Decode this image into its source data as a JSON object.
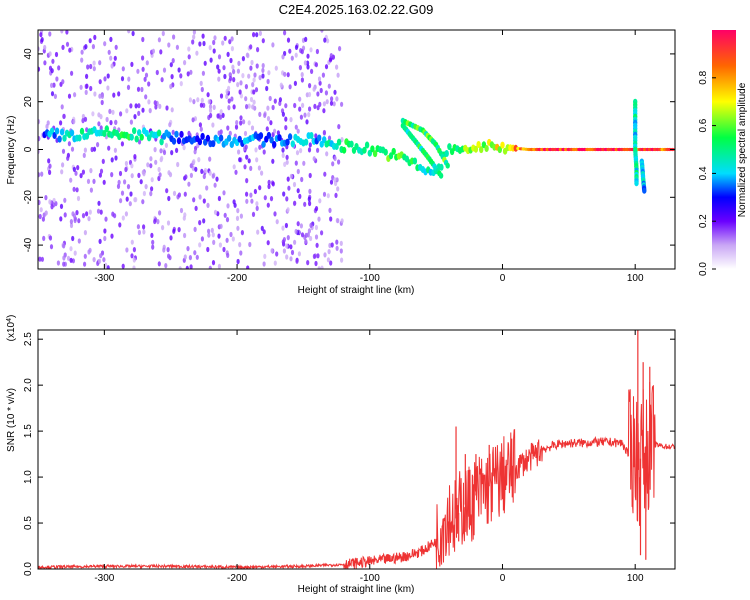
{
  "title": "C2E4.2025.163.02.22.G09",
  "chart_data": [
    {
      "type": "heatmap",
      "xlabel": "Height of straight line (km)",
      "ylabel": "Frequency (Hz)",
      "xlim": [
        -350,
        130
      ],
      "ylim": [
        -50,
        50
      ],
      "xticks": [
        -300,
        -200,
        -100,
        0,
        100
      ],
      "yticks": [
        -40,
        -20,
        0,
        20,
        40
      ],
      "colorbar": {
        "label": "Normalized spectral amplitude",
        "ticks": [
          "0.0",
          "0.2",
          "0.4",
          "0.6",
          "0.8"
        ],
        "range": [
          0,
          1
        ]
      },
      "ridge": [
        {
          "x": -345,
          "f": 6,
          "a": 0.35
        },
        {
          "x": -330,
          "f": 6,
          "a": 0.45
        },
        {
          "x": -315,
          "f": 6,
          "a": 0.5
        },
        {
          "x": -300,
          "f": 7,
          "a": 0.5
        },
        {
          "x": -285,
          "f": 6,
          "a": 0.55
        },
        {
          "x": -270,
          "f": 6,
          "a": 0.5
        },
        {
          "x": -255,
          "f": 5,
          "a": 0.45
        },
        {
          "x": -240,
          "f": 5,
          "a": 0.3
        },
        {
          "x": -220,
          "f": 4,
          "a": 0.35
        },
        {
          "x": -200,
          "f": 4,
          "a": 0.4
        },
        {
          "x": -180,
          "f": 4,
          "a": 0.35
        },
        {
          "x": -160,
          "f": 4,
          "a": 0.4
        },
        {
          "x": -140,
          "f": 4,
          "a": 0.4
        },
        {
          "x": -125,
          "f": 2,
          "a": 0.5
        },
        {
          "x": -110,
          "f": 1,
          "a": 0.55
        },
        {
          "x": -100,
          "f": 0,
          "a": 0.55
        },
        {
          "x": -90,
          "f": -1,
          "a": 0.6
        },
        {
          "x": -80,
          "f": -3,
          "a": 0.6
        },
        {
          "x": -70,
          "f": -5,
          "a": 0.55
        },
        {
          "x": -60,
          "f": -8,
          "a": 0.5
        },
        {
          "x": -50,
          "f": -10,
          "a": 0.45
        },
        {
          "x": -40,
          "f": 0,
          "a": 0.55
        },
        {
          "x": -30,
          "f": 0,
          "a": 0.6
        },
        {
          "x": -20,
          "f": 1,
          "a": 0.65
        },
        {
          "x": -10,
          "f": 1,
          "a": 0.7
        },
        {
          "x": 0,
          "f": 1,
          "a": 0.75
        },
        {
          "x": 20,
          "f": 0,
          "a": 0.95
        },
        {
          "x": 50,
          "f": 0,
          "a": 1.0
        },
        {
          "x": 80,
          "f": 0,
          "a": 1.0
        },
        {
          "x": 100,
          "f": 0,
          "a": 0.9
        },
        {
          "x": 115,
          "f": 0,
          "a": 0.95
        },
        {
          "x": 130,
          "f": 0,
          "a": 0.9
        }
      ],
      "branches": [
        {
          "x": [
            -75,
            -60,
            -50,
            -40
          ],
          "f": [
            12,
            8,
            2,
            -8
          ],
          "a": 0.55
        },
        {
          "x": [
            -75,
            -65,
            -55,
            -45
          ],
          "f": [
            10,
            3,
            -4,
            -12
          ],
          "a": 0.5
        },
        {
          "x": [
            100,
            100,
            100,
            101,
            101
          ],
          "f": [
            20,
            10,
            0,
            -8,
            -15
          ],
          "a": 0.45
        },
        {
          "x": [
            105,
            106,
            107
          ],
          "f": [
            -5,
            -12,
            -18
          ],
          "a": 0.4
        }
      ]
    },
    {
      "type": "line",
      "xlabel": "Height of straight line (km)",
      "ylabel": "SNR (10 * v/v)",
      "yscale_label": "(x10^4)",
      "xlim": [
        -350,
        130
      ],
      "ylim": [
        0,
        2.6
      ],
      "xticks": [
        -300,
        -200,
        -100,
        0,
        100
      ],
      "yticks": [
        0.0,
        0.5,
        1.0,
        1.5,
        2.0,
        2.5
      ],
      "line_color": "#ee3333",
      "series": [
        {
          "x": [
            -350,
            -300,
            -250,
            -200,
            -150,
            -120,
            -100,
            -80,
            -70,
            -60,
            -50,
            -45,
            -40,
            -35,
            -30,
            -25,
            -20,
            -15,
            -10,
            -5,
            0,
            5,
            10,
            15,
            20,
            25,
            30,
            40,
            50,
            60,
            70,
            80,
            90,
            95,
            100,
            103,
            105,
            108,
            110,
            115,
            120,
            125,
            130
          ],
          "y": [
            0.02,
            0.03,
            0.03,
            0.02,
            0.03,
            0.05,
            0.08,
            0.12,
            0.15,
            0.2,
            0.3,
            0.5,
            0.6,
            0.55,
            0.7,
            0.7,
            0.8,
            0.85,
            0.9,
            0.95,
            1.0,
            1.05,
            1.1,
            1.15,
            1.2,
            1.25,
            1.3,
            1.35,
            1.37,
            1.37,
            1.38,
            1.38,
            1.37,
            1.25,
            1.3,
            1.1,
            1.3,
            1.2,
            1.35,
            1.35,
            1.34,
            1.33,
            1.33
          ]
        }
      ],
      "spikes": [
        {
          "x": -35,
          "y": 1.55
        },
        {
          "x": -33,
          "y": 0.3
        },
        {
          "x": -28,
          "y": 1.25
        },
        {
          "x": -25,
          "y": 0.45
        },
        {
          "x": -20,
          "y": 1.25
        },
        {
          "x": -10,
          "y": 1.35
        },
        {
          "x": -8,
          "y": 0.75
        },
        {
          "x": 102,
          "y": 2.6
        },
        {
          "x": 104,
          "y": 0.15
        },
        {
          "x": 106,
          "y": 2.25
        },
        {
          "x": 108,
          "y": 0.1
        },
        {
          "x": 111,
          "y": 2.2
        }
      ]
    }
  ]
}
